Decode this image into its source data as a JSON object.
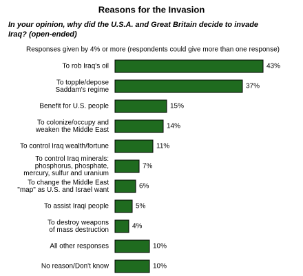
{
  "chart_data": {
    "type": "hbar",
    "title": "Reasons for the Invasion",
    "subtitle": [
      "In your opinion, why did the U.S.A. and Great Britain decide to invade",
      "Iraq? (open-ended)"
    ],
    "note": "Responses given by 4% or more (respondents could give more than one response)",
    "categories": [
      [
        "To rob Iraq's oil"
      ],
      [
        "To topple/depose",
        "Saddam's regime"
      ],
      [
        "Benefit for U.S. people"
      ],
      [
        "To colonize/occupy and",
        "weaken the Middle East"
      ],
      [
        "To control Iraq wealth/fortune"
      ],
      [
        "To control Iraq minerals:",
        "phosphorus, phosphate,",
        "mercury, sulfur and uranium"
      ],
      [
        "To change the Middle East",
        "\"map\" as U.S. and Israel want"
      ],
      [
        "To assist Iraqi people"
      ],
      [
        "To destroy weapons",
        "of mass destruction"
      ],
      [
        "All other responses"
      ],
      [
        "No reason/Don't know"
      ]
    ],
    "values": [
      43,
      37,
      15,
      14,
      11,
      7,
      6,
      5,
      4,
      10,
      10
    ],
    "value_labels": [
      "43%",
      "37%",
      "15%",
      "14%",
      "11%",
      "7%",
      "6%",
      "5%",
      "4%",
      "10%",
      "10%"
    ],
    "color": "#1f6b1f"
  }
}
